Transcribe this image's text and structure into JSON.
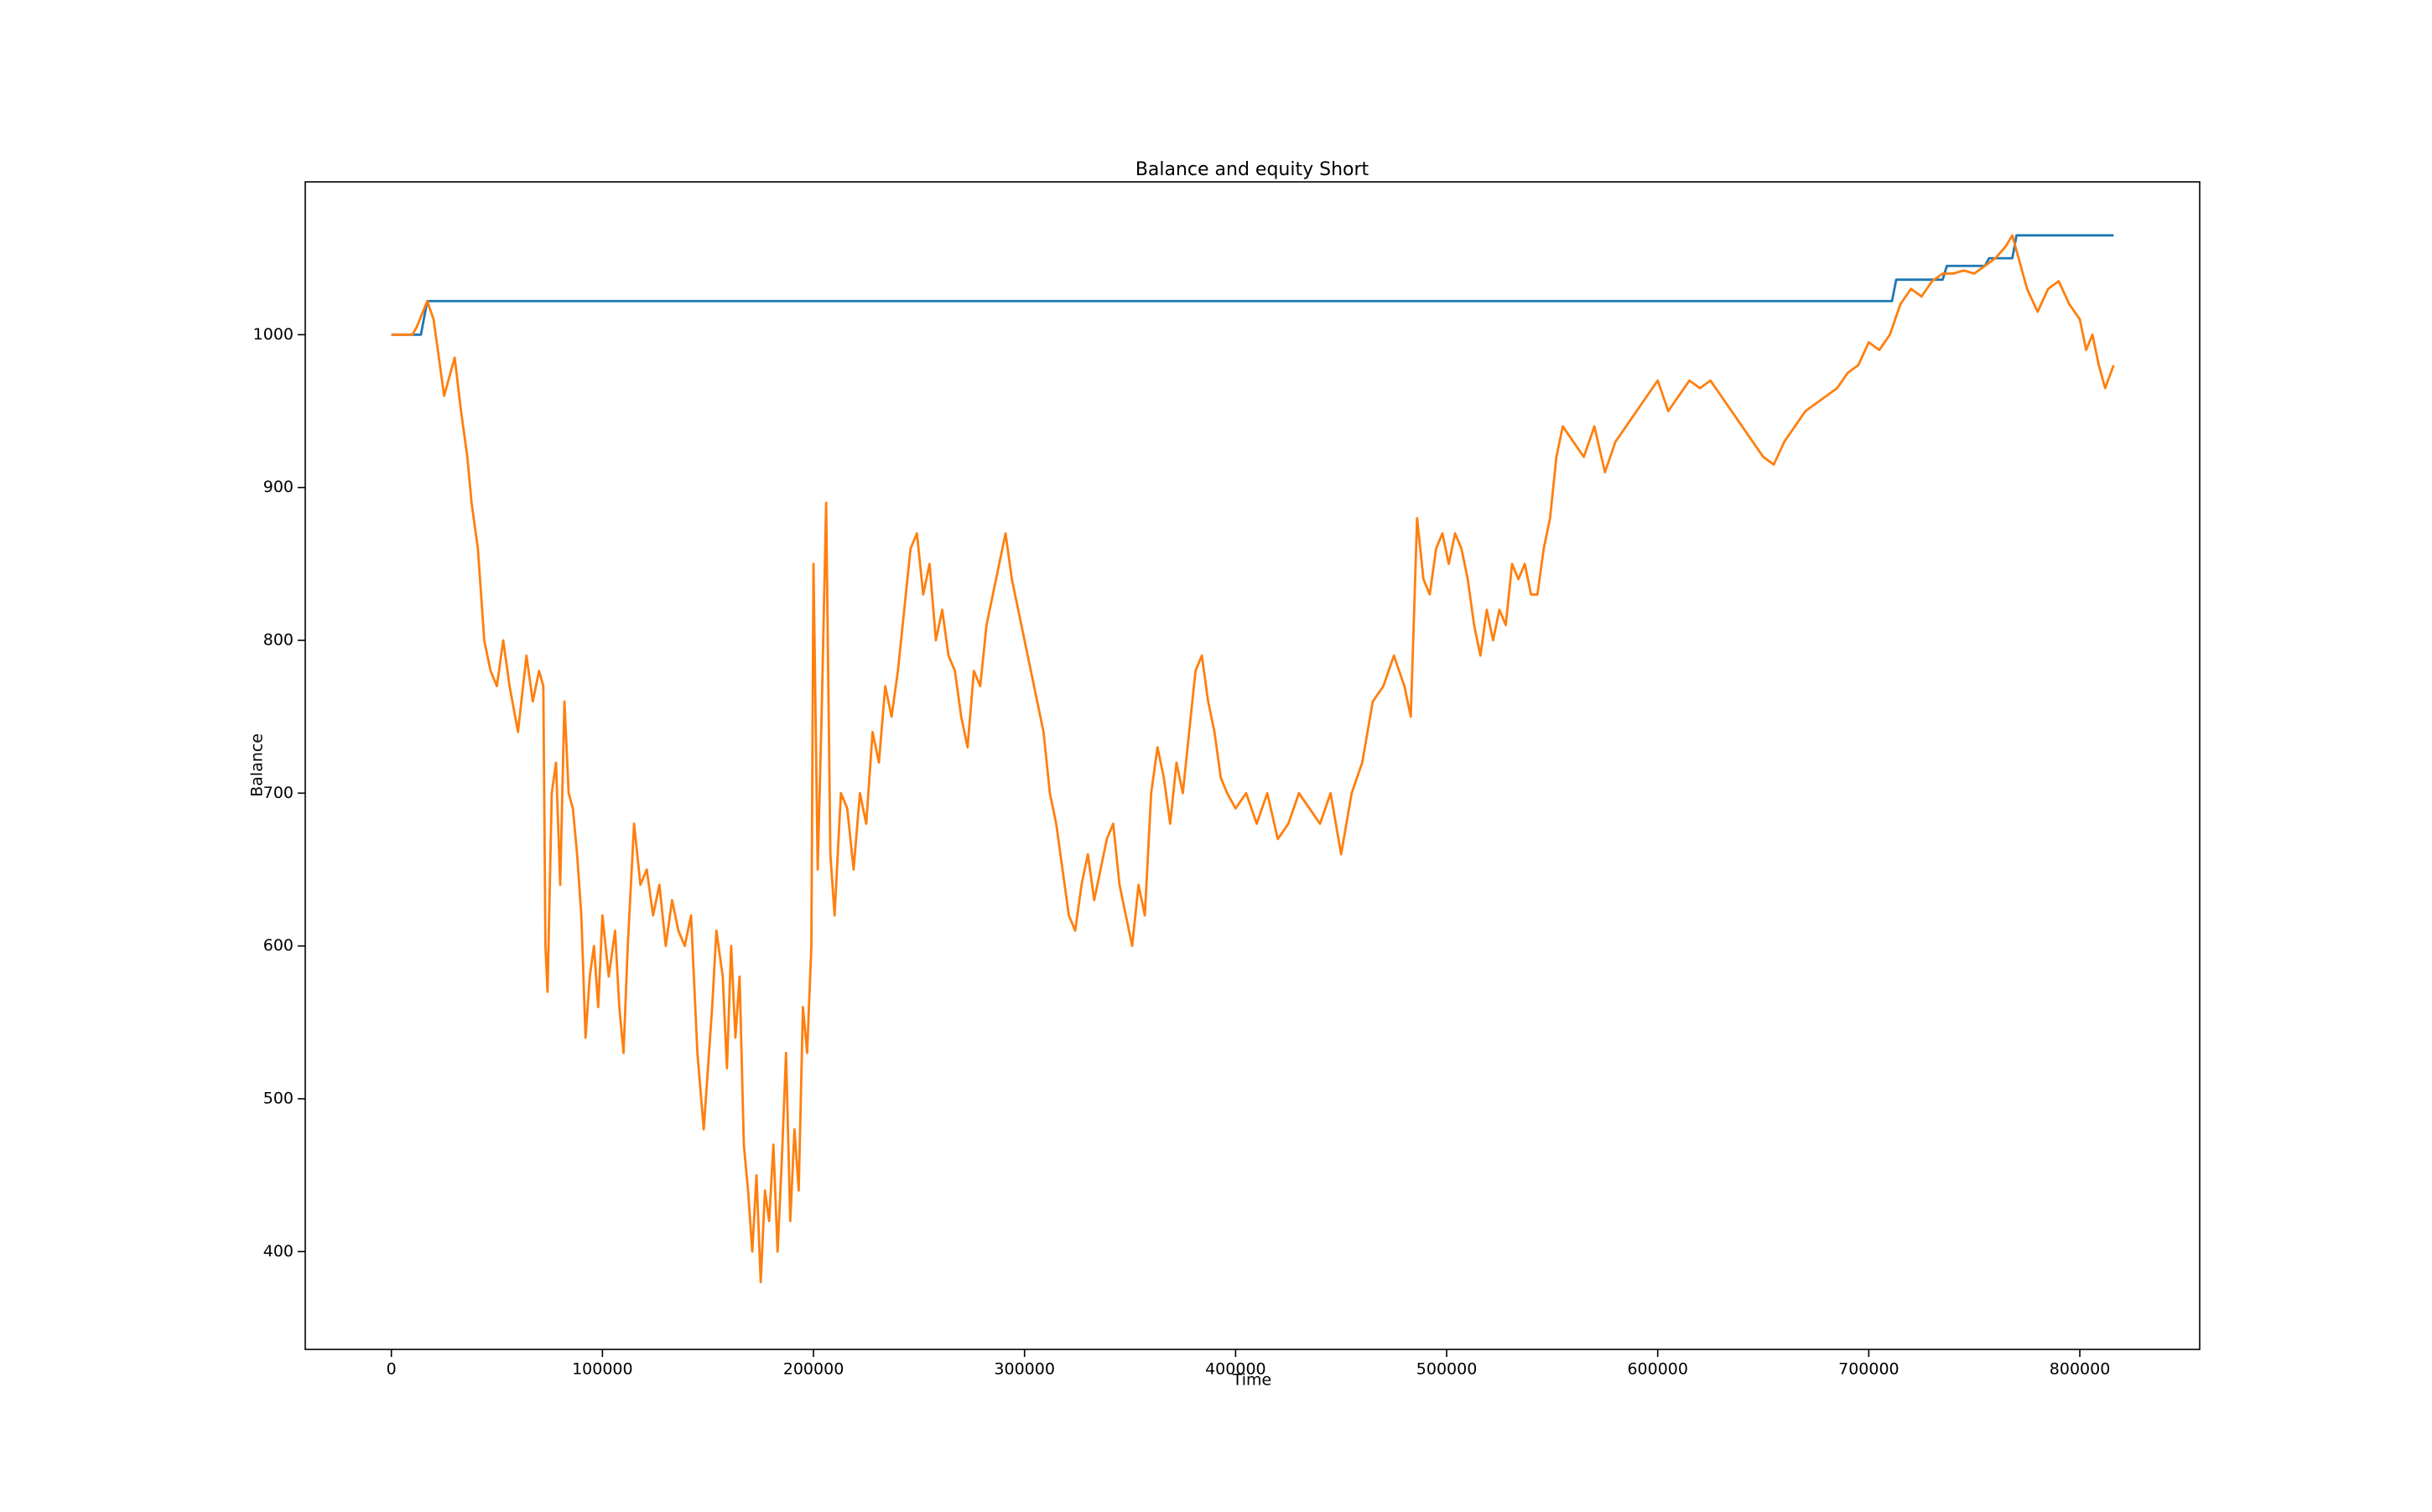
{
  "chart_data": {
    "type": "line",
    "title": "Balance and equity Short",
    "x_label": "Time",
    "y_label": "Balance",
    "xlim": [
      -40800,
      856800
    ],
    "ylim": [
      336,
      1100
    ],
    "xticks": [
      0,
      100000,
      200000,
      300000,
      400000,
      500000,
      600000,
      700000,
      800000
    ],
    "yticks": [
      400,
      500,
      600,
      700,
      800,
      900,
      1000
    ],
    "grid": false,
    "series": [
      {
        "color": "#1f77b4",
        "x": [
          0,
          14000,
          17000,
          711000,
          713000,
          735000,
          737000,
          755000,
          757000,
          768000,
          770000,
          816000
        ],
        "values": [
          1000,
          1000,
          1022,
          1022,
          1036,
          1036,
          1045,
          1045,
          1050,
          1050,
          1065,
          1065
        ]
      },
      {
        "color": "#ff7f0e",
        "x": [
          0,
          10000,
          12000,
          17000,
          20000,
          25000,
          30000,
          33000,
          36000,
          38000,
          41000,
          44000,
          47000,
          50000,
          53000,
          56000,
          60000,
          64000,
          67000,
          70000,
          72000,
          73000,
          74000,
          76000,
          78000,
          80000,
          82000,
          84000,
          86000,
          88000,
          90000,
          92000,
          94000,
          96000,
          98000,
          100000,
          103000,
          106000,
          108000,
          110000,
          112000,
          115000,
          118000,
          121000,
          124000,
          127000,
          130000,
          133000,
          136000,
          139000,
          142000,
          145000,
          148000,
          150000,
          152000,
          154000,
          157000,
          159000,
          161000,
          163000,
          165000,
          167000,
          169000,
          171000,
          173000,
          175000,
          177000,
          179000,
          181000,
          183000,
          185000,
          187000,
          189000,
          191000,
          193000,
          195000,
          197000,
          199000,
          200000,
          202000,
          204000,
          206000,
          208000,
          210000,
          213000,
          216000,
          219000,
          222000,
          225000,
          228000,
          231000,
          234000,
          237000,
          240000,
          243000,
          246000,
          249000,
          252000,
          255000,
          258000,
          261000,
          264000,
          267000,
          270000,
          273000,
          276000,
          279000,
          282000,
          285000,
          288000,
          291000,
          294000,
          297000,
          300000,
          303000,
          306000,
          309000,
          312000,
          315000,
          318000,
          321000,
          324000,
          327000,
          330000,
          333000,
          336000,
          339000,
          342000,
          345000,
          348000,
          351000,
          354000,
          357000,
          360000,
          363000,
          366000,
          369000,
          372000,
          375000,
          378000,
          381000,
          384000,
          387000,
          390000,
          393000,
          396000,
          400000,
          405000,
          410000,
          415000,
          420000,
          425000,
          430000,
          435000,
          440000,
          445000,
          450000,
          455000,
          460000,
          465000,
          470000,
          475000,
          480000,
          483000,
          486000,
          489000,
          492000,
          495000,
          498000,
          501000,
          504000,
          507000,
          510000,
          513000,
          516000,
          519000,
          522000,
          525000,
          528000,
          531000,
          534000,
          537000,
          540000,
          543000,
          546000,
          549000,
          552000,
          555000,
          560000,
          565000,
          570000,
          575000,
          580000,
          585000,
          590000,
          595000,
          600000,
          605000,
          610000,
          615000,
          620000,
          625000,
          630000,
          635000,
          640000,
          645000,
          650000,
          655000,
          660000,
          665000,
          670000,
          675000,
          680000,
          685000,
          690000,
          695000,
          700000,
          705000,
          710000,
          715000,
          720000,
          725000,
          730000,
          735000,
          740000,
          745000,
          750000,
          755000,
          760000,
          765000,
          768000,
          771000,
          775000,
          780000,
          785000,
          790000,
          795000,
          800000,
          803000,
          806000,
          809000,
          812000,
          816000
        ],
        "values": [
          1000,
          1000,
          1005,
          1022,
          1010,
          960,
          985,
          950,
          920,
          890,
          860,
          800,
          780,
          770,
          800,
          770,
          740,
          790,
          760,
          780,
          770,
          600,
          570,
          700,
          720,
          640,
          760,
          700,
          690,
          660,
          620,
          540,
          580,
          600,
          560,
          620,
          580,
          610,
          560,
          530,
          600,
          680,
          640,
          650,
          620,
          640,
          600,
          630,
          610,
          600,
          620,
          530,
          480,
          520,
          560,
          610,
          580,
          520,
          600,
          540,
          580,
          470,
          440,
          400,
          450,
          380,
          440,
          420,
          470,
          400,
          460,
          530,
          420,
          480,
          440,
          560,
          530,
          600,
          850,
          650,
          760,
          890,
          660,
          620,
          700,
          690,
          650,
          700,
          680,
          740,
          720,
          770,
          750,
          780,
          820,
          860,
          870,
          830,
          850,
          800,
          820,
          790,
          780,
          750,
          730,
          780,
          770,
          810,
          830,
          850,
          870,
          840,
          820,
          800,
          780,
          760,
          740,
          700,
          680,
          650,
          620,
          610,
          640,
          660,
          630,
          650,
          670,
          680,
          640,
          620,
          600,
          640,
          620,
          700,
          730,
          710,
          680,
          720,
          700,
          740,
          780,
          790,
          760,
          740,
          710,
          700,
          690,
          700,
          680,
          700,
          670,
          680,
          700,
          690,
          680,
          700,
          660,
          700,
          720,
          760,
          770,
          790,
          770,
          750,
          880,
          840,
          830,
          860,
          870,
          850,
          870,
          860,
          840,
          810,
          790,
          820,
          800,
          820,
          810,
          850,
          840,
          850,
          830,
          830,
          860,
          880,
          920,
          940,
          930,
          920,
          940,
          910,
          930,
          940,
          950,
          960,
          970,
          950,
          960,
          970,
          965,
          970,
          960,
          950,
          940,
          930,
          920,
          915,
          930,
          940,
          950,
          955,
          960,
          965,
          975,
          980,
          995,
          990,
          1000,
          1020,
          1030,
          1025,
          1035,
          1040,
          1040,
          1042,
          1040,
          1045,
          1050,
          1058,
          1065,
          1050,
          1030,
          1015,
          1030,
          1035,
          1020,
          1010,
          990,
          1000,
          980,
          965,
          980
        ]
      }
    ]
  }
}
